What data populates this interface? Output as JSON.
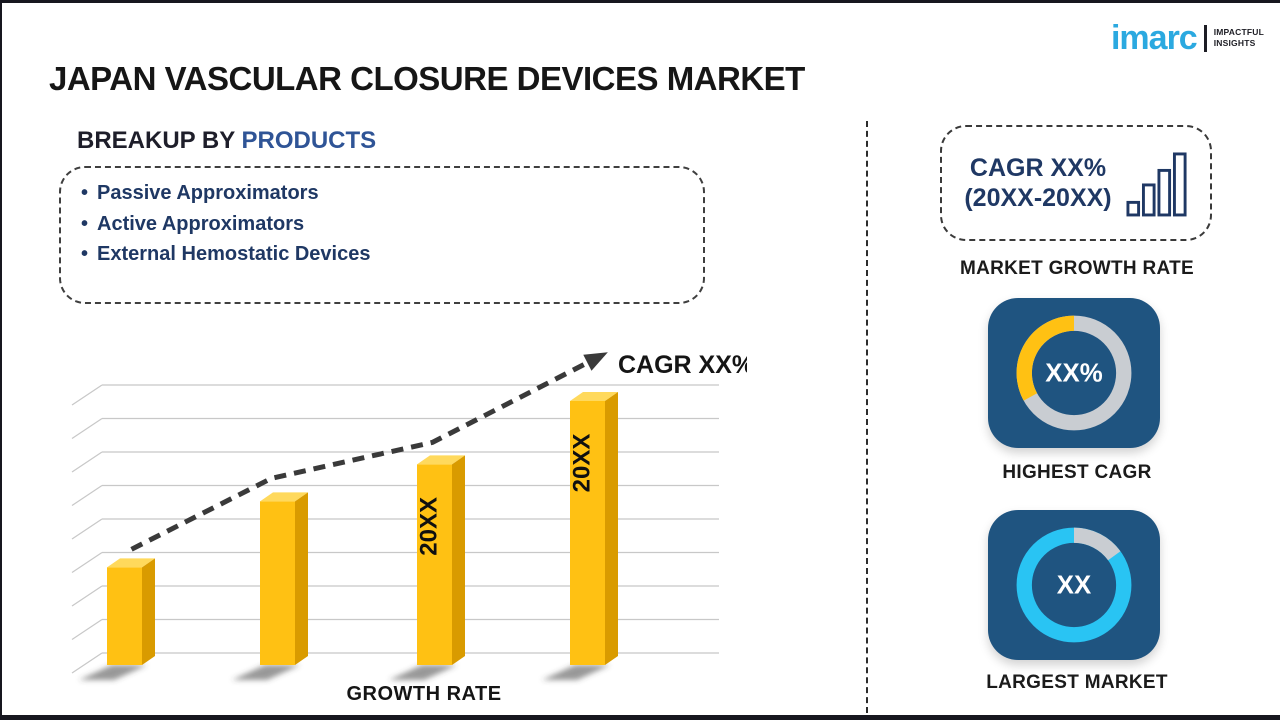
{
  "header": {
    "title": "JAPAN VASCULAR CLOSURE DEVICES MARKET",
    "logo": {
      "brand": "imarc",
      "tagline1": "IMPACTFUL",
      "tagline2": "INSIGHTS"
    }
  },
  "breakup": {
    "heading_prefix": "BREAKUP BY ",
    "heading_highlight": "PRODUCTS",
    "bullet": "•",
    "items": [
      "Passive Approximators",
      "Active Approximators",
      "External Hemostatic Devices"
    ]
  },
  "chart_data": {
    "type": "bar",
    "title": "",
    "xlabel": "GROWTH RATE",
    "ylabel": "",
    "categories": [
      "",
      "",
      "20XX",
      "20XX"
    ],
    "values": [
      37,
      62,
      76,
      100
    ],
    "ylim": [
      0,
      100
    ],
    "grid": true,
    "legend": false,
    "bar_color": "#FFC113",
    "trend": {
      "label": "CAGR XX%",
      "style": "dashed-arrow-rising"
    }
  },
  "sidebar": {
    "growth_box": {
      "line1": "CAGR XX%",
      "line2": "(20XX-20XX)"
    },
    "growth_box_label": "MARKET GROWTH RATE",
    "donuts": [
      {
        "value": "XX%",
        "label": "HIGHEST CAGR",
        "ring_base": "#C9CDD2",
        "arc_color": "#FFC113",
        "arc_percent": 33,
        "arc_dir": "ccw"
      },
      {
        "value": "XX",
        "label": "LARGEST MARKET",
        "ring_base": "#29C4F3",
        "arc_color": "#C9CDD2",
        "arc_percent": 15,
        "arc_dir": "cw"
      }
    ]
  },
  "colors": {
    "accent_blue": "#2F5496",
    "navy": "#1F3864",
    "tile_blue": "#1F5480",
    "bar_yellow": "#FFC113",
    "bar_side": "#D99B00",
    "bar_top": "#FFD95C",
    "cyan": "#29C4F3",
    "ring_gray": "#C9CDD2",
    "logo_blue": "#2BA9E0",
    "trend_dark": "#3A3A3A"
  }
}
